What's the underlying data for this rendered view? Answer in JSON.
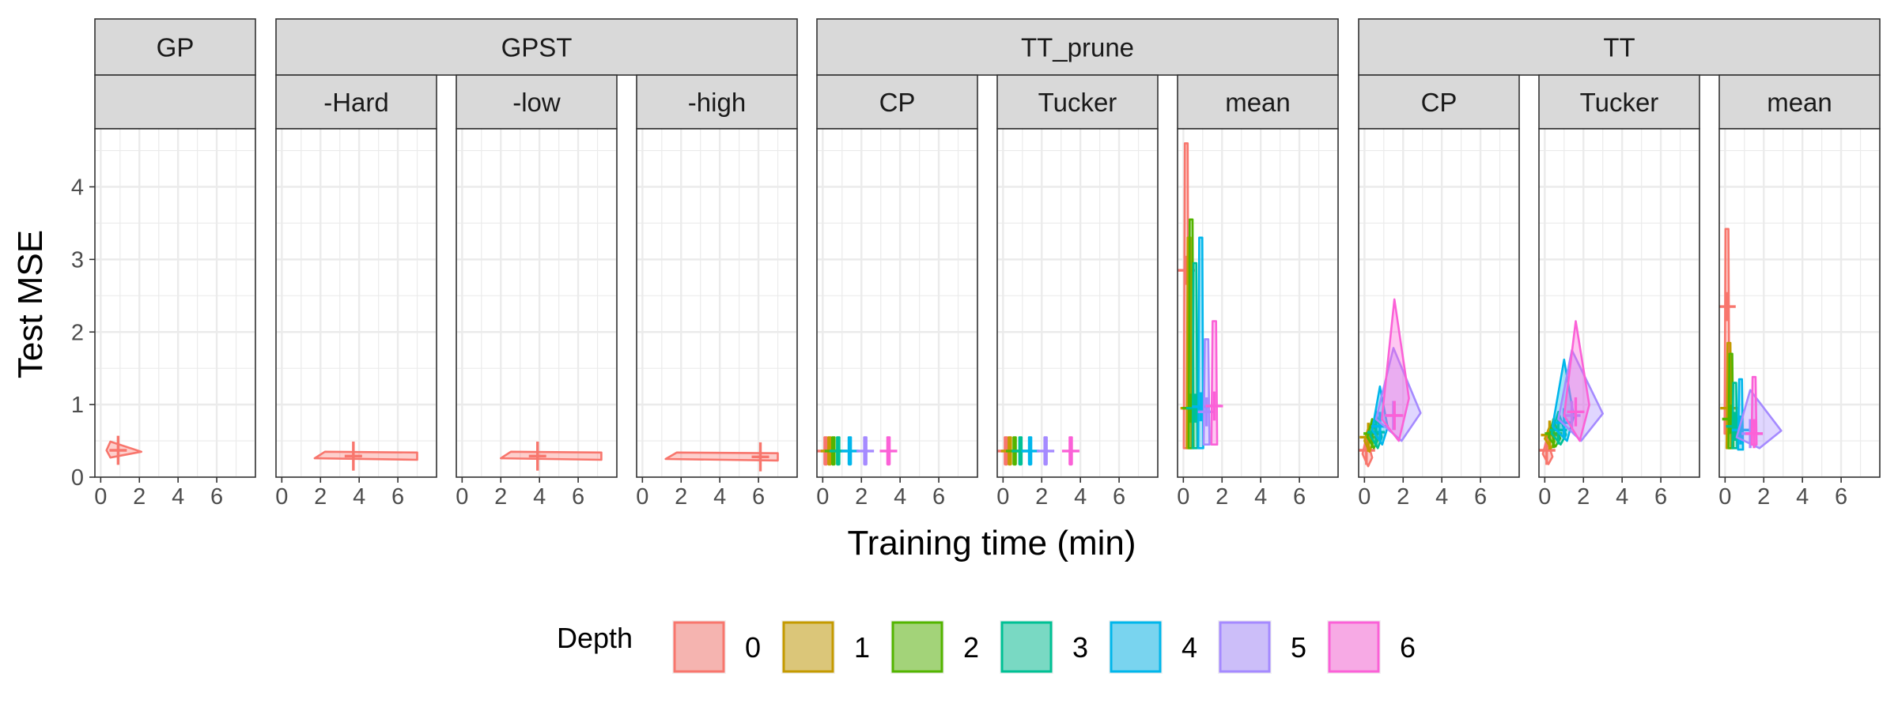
{
  "chart_data": {
    "type": "scatter",
    "description_words": "faceted panels of per-depth error regions with cross-shaped summary markers",
    "xlabel": "Training time (min)",
    "ylabel": "Test MSE",
    "xlim": [
      -0.3,
      8
    ],
    "ylim": [
      0,
      4.8
    ],
    "x_ticks": [
      0,
      2,
      4,
      6
    ],
    "y_ticks": [
      0,
      1,
      2,
      3,
      4
    ],
    "grid": true,
    "legend_position": "bottom",
    "legend": {
      "title": "Depth",
      "entries": [
        {
          "label": "0",
          "color": "#F8766D"
        },
        {
          "label": "1",
          "color": "#C49A00"
        },
        {
          "label": "2",
          "color": "#53B400"
        },
        {
          "label": "3",
          "color": "#00C094"
        },
        {
          "label": "4",
          "color": "#00B6EB"
        },
        {
          "label": "5",
          "color": "#A58AFF"
        },
        {
          "label": "6",
          "color": "#FB61D7"
        }
      ]
    },
    "groups": [
      {
        "label": "GP",
        "facets": [
          {
            "label": "",
            "series": [
              {
                "depth": 0,
                "cx": 0.9,
                "cy": 0.37,
                "xr": [
                  0.3,
                  2.1
                ],
                "yr": [
                  0.2,
                  0.58
                ],
                "shape": "blob"
              }
            ]
          }
        ]
      },
      {
        "label": "GPST",
        "facets": [
          {
            "label": "-Hard",
            "series": [
              {
                "depth": 0,
                "cx": 3.7,
                "cy": 0.29,
                "xr": [
                  1.7,
                  7.0
                ],
                "yr": [
                  0.1,
                  0.48
                ],
                "shape": "band"
              }
            ]
          },
          {
            "label": "-low",
            "series": [
              {
                "depth": 0,
                "cx": 3.9,
                "cy": 0.29,
                "xr": [
                  2.0,
                  7.2
                ],
                "yr": [
                  0.12,
                  0.47
                ],
                "shape": "band"
              }
            ]
          },
          {
            "label": "-high",
            "series": [
              {
                "depth": 0,
                "cx": 6.1,
                "cy": 0.28,
                "xr": [
                  1.2,
                  7.0
                ],
                "yr": [
                  0.1,
                  0.47
                ],
                "shape": "band"
              }
            ]
          }
        ]
      },
      {
        "label": "TT_prune",
        "facets": [
          {
            "label": "CP",
            "series": [
              {
                "depth": 0,
                "cx": 0.15,
                "cy": 0.36,
                "xr": [
                  0.0,
                  0.4
                ],
                "yr": [
                  0.18,
                  0.55
                ],
                "shape": "bar"
              },
              {
                "depth": 1,
                "cx": 0.35,
                "cy": 0.36,
                "xr": [
                  0.15,
                  0.55
                ],
                "yr": [
                  0.18,
                  0.55
                ],
                "shape": "bar"
              },
              {
                "depth": 2,
                "cx": 0.55,
                "cy": 0.36,
                "xr": [
                  0.35,
                  0.8
                ],
                "yr": [
                  0.18,
                  0.55
                ],
                "shape": "bar"
              },
              {
                "depth": 3,
                "cx": 0.8,
                "cy": 0.36,
                "xr": [
                  0.55,
                  1.1
                ],
                "yr": [
                  0.18,
                  0.55
                ],
                "shape": "bar"
              },
              {
                "depth": 4,
                "cx": 1.4,
                "cy": 0.36,
                "xr": [
                  1.0,
                  1.8
                ],
                "yr": [
                  0.18,
                  0.55
                ],
                "shape": "bar"
              },
              {
                "depth": 5,
                "cx": 2.2,
                "cy": 0.36,
                "xr": [
                  1.7,
                  2.6
                ],
                "yr": [
                  0.18,
                  0.55
                ],
                "shape": "bar"
              },
              {
                "depth": 6,
                "cx": 3.4,
                "cy": 0.36,
                "xr": [
                  2.8,
                  4.0
                ],
                "yr": [
                  0.18,
                  0.55
                ],
                "shape": "bar"
              }
            ]
          },
          {
            "label": "Tucker",
            "series": [
              {
                "depth": 0,
                "cx": 0.15,
                "cy": 0.36,
                "xr": [
                  0.0,
                  0.4
                ],
                "yr": [
                  0.18,
                  0.55
                ],
                "shape": "bar"
              },
              {
                "depth": 1,
                "cx": 0.35,
                "cy": 0.36,
                "xr": [
                  0.15,
                  0.55
                ],
                "yr": [
                  0.18,
                  0.55
                ],
                "shape": "bar"
              },
              {
                "depth": 2,
                "cx": 0.6,
                "cy": 0.36,
                "xr": [
                  0.35,
                  0.85
                ],
                "yr": [
                  0.18,
                  0.55
                ],
                "shape": "bar"
              },
              {
                "depth": 3,
                "cx": 0.9,
                "cy": 0.36,
                "xr": [
                  0.6,
                  1.2
                ],
                "yr": [
                  0.18,
                  0.55
                ],
                "shape": "bar"
              },
              {
                "depth": 4,
                "cx": 1.4,
                "cy": 0.36,
                "xr": [
                  1.0,
                  1.8
                ],
                "yr": [
                  0.18,
                  0.55
                ],
                "shape": "bar"
              },
              {
                "depth": 5,
                "cx": 2.2,
                "cy": 0.36,
                "xr": [
                  1.7,
                  2.7
                ],
                "yr": [
                  0.18,
                  0.55
                ],
                "shape": "bar"
              },
              {
                "depth": 6,
                "cx": 3.5,
                "cy": 0.36,
                "xr": [
                  2.9,
                  4.1
                ],
                "yr": [
                  0.18,
                  0.55
                ],
                "shape": "bar"
              }
            ]
          },
          {
            "label": "mean",
            "series": [
              {
                "depth": 0,
                "cx": 0.15,
                "cy": 2.85,
                "xr": [
                  -0.2,
                  0.35
                ],
                "yr": [
                  0.4,
                  4.6
                ],
                "shape": "spike"
              },
              {
                "depth": 1,
                "cx": 0.3,
                "cy": 0.95,
                "xr": [
                  0.1,
                  0.5
                ],
                "yr": [
                  0.4,
                  3.3
                ],
                "shape": "spike"
              },
              {
                "depth": 2,
                "cx": 0.4,
                "cy": 0.95,
                "xr": [
                  0.2,
                  0.6
                ],
                "yr": [
                  0.4,
                  3.55
                ],
                "shape": "spike"
              },
              {
                "depth": 3,
                "cx": 0.6,
                "cy": 0.95,
                "xr": [
                  0.35,
                  0.85
                ],
                "yr": [
                  0.4,
                  2.95
                ],
                "shape": "spike"
              },
              {
                "depth": 4,
                "cx": 0.9,
                "cy": 0.97,
                "xr": [
                  0.3,
                  1.6
                ],
                "yr": [
                  0.4,
                  3.3
                ],
                "shape": "spike"
              },
              {
                "depth": 5,
                "cx": 1.2,
                "cy": 0.9,
                "xr": [
                  0.4,
                  1.9
                ],
                "yr": [
                  0.45,
                  1.9
                ],
                "shape": "spike"
              },
              {
                "depth": 6,
                "cx": 1.6,
                "cy": 0.98,
                "xr": [
                  0.9,
                  2.4
                ],
                "yr": [
                  0.45,
                  2.15
                ],
                "shape": "spike"
              }
            ]
          }
        ]
      },
      {
        "label": "TT",
        "facets": [
          {
            "label": "CP",
            "series": [
              {
                "depth": 0,
                "cx": 0.1,
                "cy": 0.37,
                "xr": [
                  -0.1,
                  0.4
                ],
                "yr": [
                  0.15,
                  0.55
                ],
                "shape": "poly"
              },
              {
                "depth": 1,
                "cx": 0.2,
                "cy": 0.55,
                "xr": [
                  0.0,
                  0.4
                ],
                "yr": [
                  0.35,
                  0.68
                ],
                "shape": "poly"
              },
              {
                "depth": 2,
                "cx": 0.4,
                "cy": 0.6,
                "xr": [
                  0.15,
                  0.7
                ],
                "yr": [
                  0.4,
                  0.8
                ],
                "shape": "poly"
              },
              {
                "depth": 3,
                "cx": 0.6,
                "cy": 0.62,
                "xr": [
                  0.3,
                  0.9
                ],
                "yr": [
                  0.4,
                  0.9
                ],
                "shape": "poly"
              },
              {
                "depth": 4,
                "cx": 0.8,
                "cy": 0.7,
                "xr": [
                  0.4,
                  1.2
                ],
                "yr": [
                  0.45,
                  1.25
                ],
                "shape": "poly"
              },
              {
                "depth": 5,
                "cx": 1.5,
                "cy": 0.85,
                "xr": [
                  0.6,
                  2.9
                ],
                "yr": [
                  0.5,
                  1.78
                ],
                "shape": "poly"
              },
              {
                "depth": 6,
                "cx": 1.55,
                "cy": 0.85,
                "xr": [
                  0.9,
                  2.3
                ],
                "yr": [
                  0.5,
                  2.45
                ],
                "shape": "poly"
              }
            ]
          },
          {
            "label": "Tucker",
            "series": [
              {
                "depth": 0,
                "cx": 0.1,
                "cy": 0.37,
                "xr": [
                  -0.1,
                  0.4
                ],
                "yr": [
                  0.18,
                  0.52
                ],
                "shape": "poly"
              },
              {
                "depth": 1,
                "cx": 0.25,
                "cy": 0.58,
                "xr": [
                  0.0,
                  0.5
                ],
                "yr": [
                  0.4,
                  0.7
                ],
                "shape": "poly"
              },
              {
                "depth": 2,
                "cx": 0.45,
                "cy": 0.6,
                "xr": [
                  0.2,
                  0.8
                ],
                "yr": [
                  0.42,
                  0.8
                ],
                "shape": "poly"
              },
              {
                "depth": 3,
                "cx": 0.7,
                "cy": 0.65,
                "xr": [
                  0.35,
                  1.1
                ],
                "yr": [
                  0.45,
                  0.9
                ],
                "shape": "poly"
              },
              {
                "depth": 4,
                "cx": 1.0,
                "cy": 0.75,
                "xr": [
                  0.4,
                  1.5
                ],
                "yr": [
                  0.5,
                  1.62
                ],
                "shape": "poly"
              },
              {
                "depth": 5,
                "cx": 1.4,
                "cy": 0.85,
                "xr": [
                  0.7,
                  3.0
                ],
                "yr": [
                  0.5,
                  1.75
                ],
                "shape": "poly"
              },
              {
                "depth": 6,
                "cx": 1.6,
                "cy": 0.9,
                "xr": [
                  1.0,
                  2.3
                ],
                "yr": [
                  0.5,
                  2.15
                ],
                "shape": "poly"
              }
            ]
          },
          {
            "label": "mean",
            "series": [
              {
                "depth": 0,
                "cx": 0.1,
                "cy": 2.35,
                "xr": [
                  -0.2,
                  0.5
                ],
                "yr": [
                  0.6,
                  3.42
                ],
                "shape": "spike"
              },
              {
                "depth": 1,
                "cx": 0.2,
                "cy": 0.95,
                "xr": [
                  0.0,
                  0.6
                ],
                "yr": [
                  0.4,
                  1.85
                ],
                "shape": "spike"
              },
              {
                "depth": 2,
                "cx": 0.3,
                "cy": 0.8,
                "xr": [
                  0.05,
                  0.8
                ],
                "yr": [
                  0.4,
                  1.7
                ],
                "shape": "spike"
              },
              {
                "depth": 3,
                "cx": 0.5,
                "cy": 0.7,
                "xr": [
                  0.2,
                  1.0
                ],
                "yr": [
                  0.4,
                  1.3
                ],
                "shape": "spike"
              },
              {
                "depth": 4,
                "cx": 0.8,
                "cy": 0.65,
                "xr": [
                  0.3,
                  1.3
                ],
                "yr": [
                  0.38,
                  1.35
                ],
                "shape": "spike"
              },
              {
                "depth": 5,
                "cx": 1.3,
                "cy": 0.6,
                "xr": [
                  0.6,
                  2.9
                ],
                "yr": [
                  0.4,
                  1.2
                ],
                "shape": "poly"
              },
              {
                "depth": 6,
                "cx": 1.5,
                "cy": 0.6,
                "xr": [
                  0.9,
                  2.2
                ],
                "yr": [
                  0.45,
                  1.38
                ],
                "shape": "spike"
              }
            ]
          }
        ]
      }
    ]
  }
}
